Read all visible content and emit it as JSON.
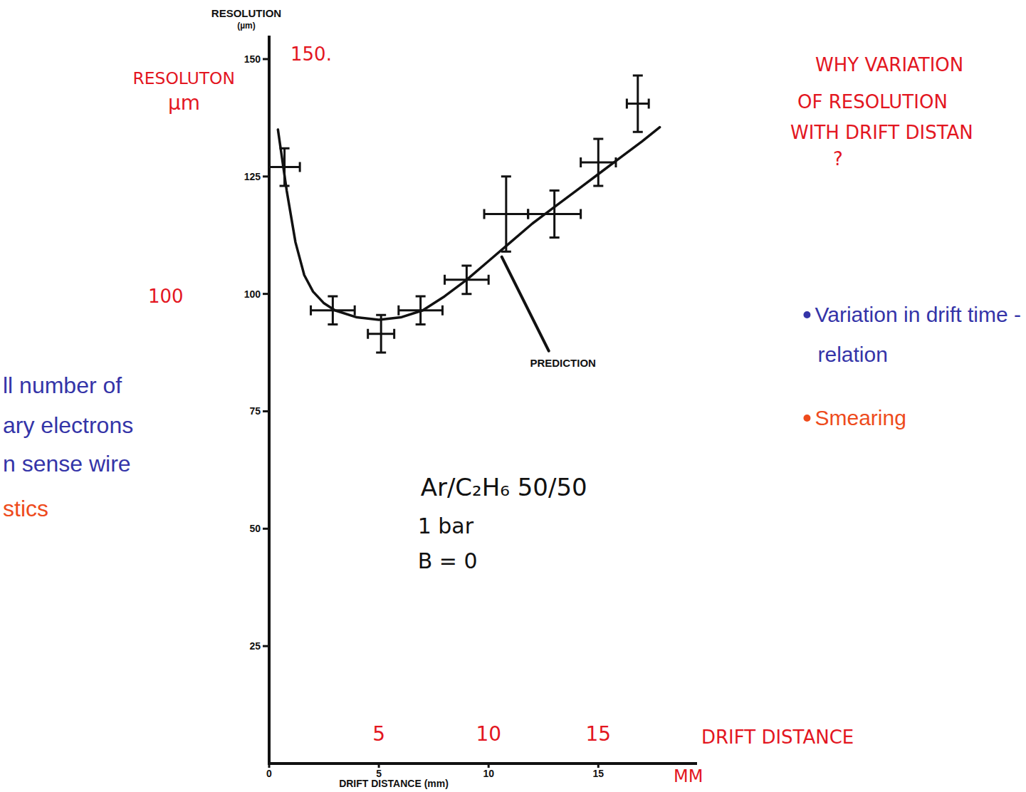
{
  "chart_data": {
    "type": "scatter",
    "y_label": "RESOLUTION",
    "y_unit": "(µm)",
    "x_label": "DRIFT DISTANCE (mm)",
    "xlim": [
      0,
      19.5
    ],
    "ylim": [
      0,
      155
    ],
    "xticks": [
      0,
      5,
      10,
      15
    ],
    "yticks": [
      25,
      50,
      75,
      100,
      125,
      150
    ],
    "grid": false,
    "series": [
      {
        "type": "scatter",
        "marker": "cross",
        "color": "#111111",
        "x": [
          0.7,
          2.9,
          5.1,
          6.9,
          9.0,
          10.8,
          13.0,
          15.0,
          16.8
        ],
        "values": [
          127,
          96.5,
          91.5,
          96.5,
          103,
          117,
          117,
          128,
          140.5
        ],
        "errors": [
          4,
          3,
          4,
          3,
          3,
          8,
          5,
          5,
          6
        ],
        "x_errors": [
          0.7,
          1.0,
          0.6,
          1.0,
          1.0,
          1.0,
          1.2,
          0.8,
          0.5
        ]
      },
      {
        "type": "line",
        "name": "PREDICTION",
        "color": "#111111",
        "line_style": "solid",
        "x": [
          0.4,
          0.8,
          1.2,
          1.6,
          2,
          2.5,
          3,
          4,
          5,
          6,
          7,
          8,
          9,
          10,
          11,
          12,
          13,
          14,
          15,
          16,
          17,
          17.8
        ],
        "values": [
          135,
          122,
          111,
          104,
          100.5,
          98,
          96.5,
          95,
          94.5,
          95,
          96.5,
          99.5,
          103,
          107,
          111,
          115,
          118.5,
          122,
          125.5,
          129,
          132.5,
          135.5
        ]
      }
    ],
    "annotations": {
      "red_y_label": [
        "RESOLUTON",
        "µm"
      ],
      "red_yticks": [
        {
          "value": 150,
          "label": "150."
        },
        {
          "value": 100,
          "label": "100"
        }
      ],
      "red_xticks": [
        5,
        10,
        15
      ],
      "red_x_label": [
        "DRIFT DISTANCE",
        "MM"
      ],
      "conditions": [
        "Ar/C₂H₆ 50/50",
        "1 bar",
        "B = 0"
      ],
      "question": [
        "WHY VARIATION",
        "OF RESOLUTION",
        "WITH DRIFT DISTAN",
        "?"
      ],
      "right_bullets": [
        {
          "text": [
            "Variation in drift time -",
            "relation"
          ],
          "color": "#3434a8"
        },
        {
          "text": [
            "Smearing"
          ],
          "color": "#ee4b1c"
        }
      ],
      "left_fragments": [
        {
          "text": [
            "ll number of",
            "ary electrons",
            "n sense wire"
          ],
          "color": "#3434a8"
        },
        {
          "text": [
            "stics"
          ],
          "color": "#ee4b1c"
        }
      ]
    }
  }
}
